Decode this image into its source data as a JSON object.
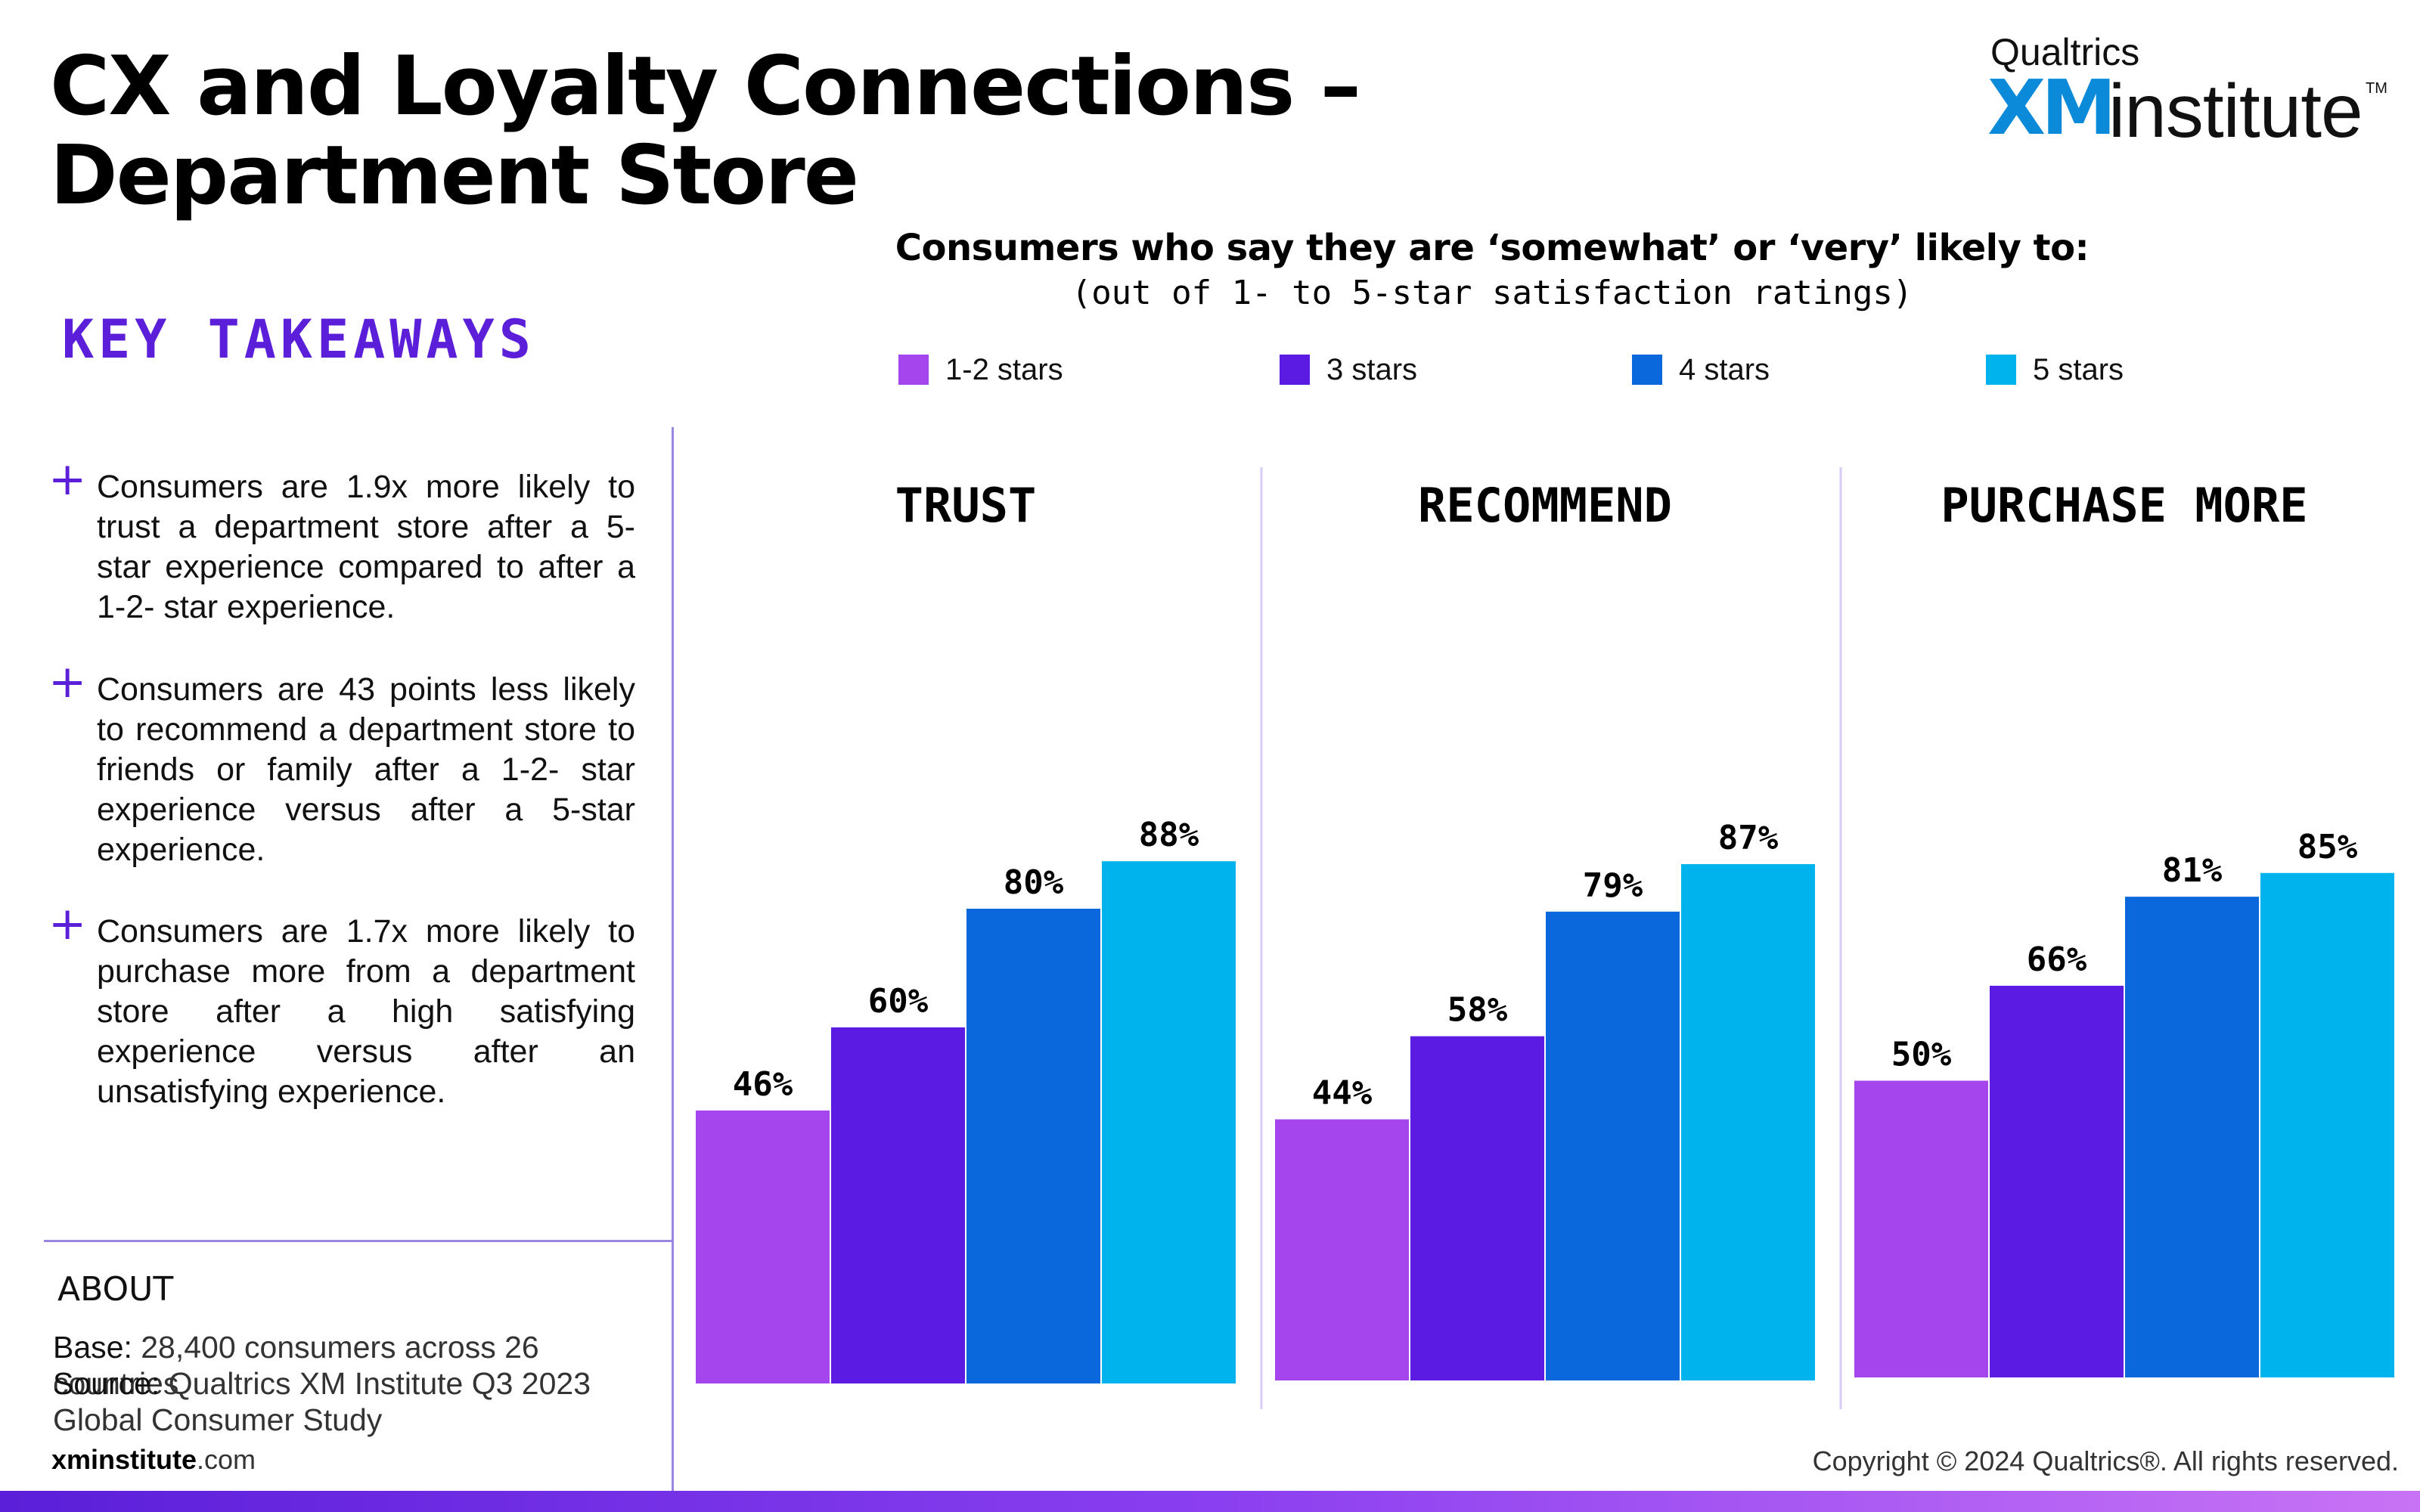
{
  "header": {
    "title": "CX and Loyalty Connections – Department Store",
    "logo_top": "Qualtrics",
    "logo_xm": "XM",
    "logo_institute": "institute",
    "logo_tm": "TM"
  },
  "takeaways": {
    "heading": "KEY TAKEAWAYS",
    "items": [
      "Consumers are 1.9x more likely to trust a department store after a 5-star experience compared to after a 1-2- star experience.",
      "Consumers are 43 points less likely to recommend a department store to friends or family after a 1-2- star experience versus after a 5-star experience.",
      "Consumers are 1.7x more likely to purchase more from a department store after a high satisfying experience versus after an unsatisfying experience."
    ]
  },
  "about": {
    "heading": "ABOUT",
    "base_label": "Base:",
    "base_value": " 28,400 consumers across 26 countries",
    "source_label": "Source:",
    "source_value": " Qualtrics XM Institute Q3 2023 Global Consumer Study"
  },
  "footer": {
    "site_bold": "xminstitute",
    "site_rest": ".com",
    "copyright": "Copyright © 2024 Qualtrics®. All rights reserved."
  },
  "colors": {
    "accent": "#5b1fd9",
    "series": [
      "#a445ee",
      "#5b1be2",
      "#0a68dc",
      "#00b3ec"
    ]
  },
  "chart_data": {
    "type": "bar",
    "title": "Consumers who say they are ‘somewhat’ or ‘very’ likely to:",
    "subtitle": "(out of 1- to 5-star satisfaction ratings)",
    "categories": [
      "TRUST",
      "RECOMMEND",
      "PURCHASE MORE"
    ],
    "series": [
      {
        "name": "1-2 stars",
        "values": [
          46,
          44,
          50
        ],
        "labels": [
          "46%",
          "44%",
          "50%"
        ]
      },
      {
        "name": "3 stars",
        "values": [
          60,
          58,
          66
        ],
        "labels": [
          "60%",
          "58%",
          "66%"
        ]
      },
      {
        "name": "4 stars",
        "values": [
          80,
          79,
          81
        ],
        "labels": [
          "80%",
          "79%",
          "81%"
        ]
      },
      {
        "name": "5 stars",
        "values": [
          88,
          87,
          85
        ],
        "labels": [
          "88%",
          "87%",
          "85%"
        ]
      }
    ],
    "unit": "%",
    "ylim": [
      0,
      100
    ],
    "legend_position": "top",
    "grid": false
  }
}
